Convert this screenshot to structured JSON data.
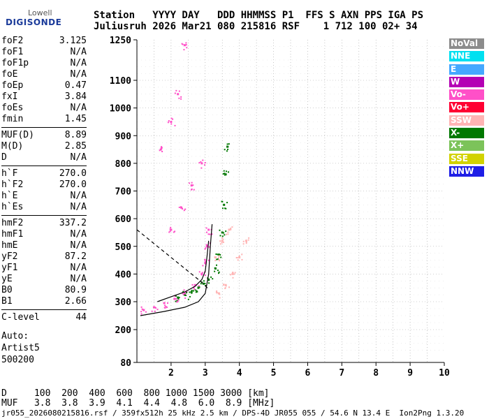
{
  "logo": {
    "top": "Lowell",
    "bottom": "DIGISONDE"
  },
  "header": {
    "line1": "Station   YYYY DAY   DDD HHMMSS P1  FFS S AXN PPS IGA PS",
    "line2": "Juliusruh 2026 Mar21 080 215816 RSF    1 712 100 02+ 34"
  },
  "params": [
    {
      "group": [
        {
          "name": "foF2",
          "value": "3.125"
        },
        {
          "name": "foF1",
          "value": "N/A"
        },
        {
          "name": "foF1p",
          "value": "N/A"
        },
        {
          "name": "foE",
          "value": "N/A"
        },
        {
          "name": "foEp",
          "value": "0.47"
        },
        {
          "name": "fxI",
          "value": "3.84"
        },
        {
          "name": "foEs",
          "value": "N/A"
        },
        {
          "name": "fmin",
          "value": "1.45"
        }
      ]
    },
    {
      "group": [
        {
          "name": "MUF(D)",
          "value": "8.89"
        },
        {
          "name": "M(D)",
          "value": "2.85"
        },
        {
          "name": "D",
          "value": "N/A"
        }
      ]
    },
    {
      "group": [
        {
          "name": "h`F",
          "value": "270.0"
        },
        {
          "name": "h`F2",
          "value": "270.0"
        },
        {
          "name": "h`E",
          "value": "N/A"
        },
        {
          "name": "h`Es",
          "value": "N/A"
        }
      ]
    },
    {
      "group": [
        {
          "name": "hmF2",
          "value": "337.2"
        },
        {
          "name": "hmF1",
          "value": "N/A"
        },
        {
          "name": "hmE",
          "value": "N/A"
        },
        {
          "name": "yF2",
          "value": "87.2"
        },
        {
          "name": "yF1",
          "value": "N/A"
        },
        {
          "name": "yE",
          "value": "N/A"
        },
        {
          "name": "B0",
          "value": "80.9"
        },
        {
          "name": "B1",
          "value": "2.66"
        }
      ]
    },
    {
      "group": [
        {
          "name": "C-level",
          "value": "44"
        }
      ]
    }
  ],
  "auto": [
    "Auto:",
    "Artist5",
    "500200"
  ],
  "legend": [
    {
      "label": "NoVal",
      "color": "#8c8c8c"
    },
    {
      "label": "NNE",
      "color": "#00e0f0"
    },
    {
      "label": "E",
      "color": "#45a8ff"
    },
    {
      "label": "W",
      "color": "#b400b4"
    },
    {
      "label": "Vo-",
      "color": "#ff50c8"
    },
    {
      "label": "Vo+",
      "color": "#ff0032"
    },
    {
      "label": "SSW",
      "color": "#ffb4b4"
    },
    {
      "label": "X-",
      "color": "#007800"
    },
    {
      "label": "X+",
      "color": "#7cc35a"
    },
    {
      "label": "SSE",
      "color": "#d2d200"
    },
    {
      "label": "NNW",
      "color": "#1e1ee6"
    }
  ],
  "bottom": {
    "line1": "D     100  200  400  600  800 1000 1500 3000 [km]",
    "line2": "MUF   3.8  3.8  3.9  4.1  4.4  4.8  6.0  8.9 [MHz]"
  },
  "footer": "jr055_2026080215816.rsf / 359fx512h 25 kHz 2.5 km / DPS-4D JR055 055 / 54.6 N 13.4 E  Ion2Png 1.3.20",
  "chart_data": {
    "type": "scatter",
    "xlim": [
      1,
      10
    ],
    "ylim": [
      80,
      1250
    ],
    "x_ticks": [
      2,
      3,
      4,
      5,
      6,
      7,
      8,
      9,
      10
    ],
    "y_ticks": [
      80,
      200,
      300,
      400,
      500,
      600,
      700,
      800,
      900,
      1000,
      1100,
      1250
    ],
    "grid": true,
    "series": [
      {
        "name": "X-",
        "points": [
          [
            2.2,
            315
          ],
          [
            2.4,
            325
          ],
          [
            2.6,
            335
          ],
          [
            2.8,
            350
          ],
          [
            2.95,
            365
          ],
          [
            3.1,
            380
          ],
          [
            3.3,
            420
          ],
          [
            3.4,
            470
          ],
          [
            3.5,
            550
          ],
          [
            3.55,
            650
          ],
          [
            3.6,
            760
          ],
          [
            3.65,
            860
          ]
        ]
      },
      {
        "name": "Vo-",
        "points": [
          [
            1.2,
            270
          ],
          [
            1.5,
            280
          ],
          [
            1.8,
            295
          ],
          [
            2.1,
            310
          ],
          [
            2.4,
            330
          ],
          [
            2.7,
            360
          ],
          [
            2.9,
            400
          ],
          [
            3.0,
            440
          ],
          [
            3.05,
            500
          ],
          [
            3.1,
            560
          ],
          [
            2.0,
            560
          ],
          [
            2.3,
            640
          ],
          [
            2.6,
            720
          ],
          [
            2.9,
            800
          ],
          [
            1.7,
            850
          ],
          [
            2.0,
            950
          ],
          [
            2.2,
            1050
          ],
          [
            2.4,
            1230
          ]
        ]
      },
      {
        "name": "SSW",
        "points": [
          [
            3.4,
            330
          ],
          [
            3.6,
            360
          ],
          [
            3.8,
            400
          ],
          [
            4.0,
            460
          ],
          [
            4.2,
            520
          ],
          [
            3.3,
            460
          ],
          [
            3.5,
            520
          ],
          [
            3.7,
            560
          ]
        ]
      }
    ],
    "curves": [
      {
        "name": "profile",
        "style": "solid",
        "points": [
          [
            1.1,
            250
          ],
          [
            1.8,
            265
          ],
          [
            2.4,
            280
          ],
          [
            2.8,
            300
          ],
          [
            3.0,
            330
          ],
          [
            3.1,
            400
          ],
          [
            3.15,
            500
          ],
          [
            3.2,
            580
          ]
        ]
      },
      {
        "name": "trace",
        "style": "solid",
        "points": [
          [
            1.6,
            300
          ],
          [
            2.0,
            318
          ],
          [
            2.4,
            335
          ],
          [
            2.7,
            355
          ],
          [
            2.9,
            380
          ],
          [
            3.0,
            410
          ],
          [
            3.05,
            460
          ],
          [
            3.1,
            520
          ]
        ]
      },
      {
        "name": "muf",
        "style": "dashed",
        "points": [
          [
            1.0,
            560
          ],
          [
            1.8,
            480
          ],
          [
            2.4,
            420
          ],
          [
            2.9,
            370
          ],
          [
            3.1,
            345
          ]
        ]
      }
    ]
  }
}
